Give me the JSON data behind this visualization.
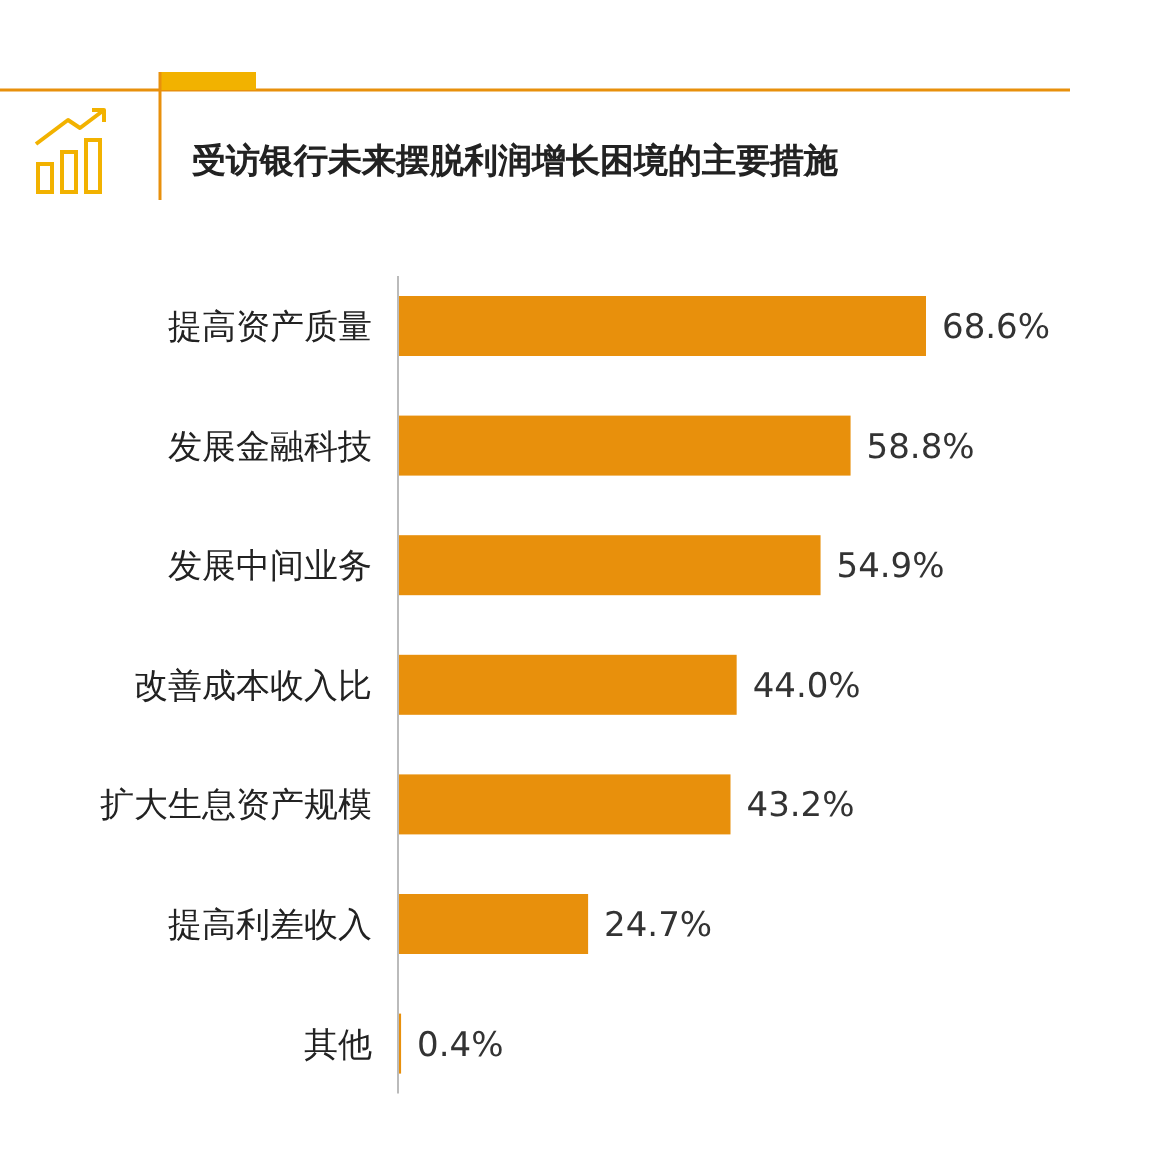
{
  "chart_data": {
    "type": "bar",
    "orientation": "horizontal",
    "title": "受访银行未来摆脱利润增长困境的主要措施",
    "categories": [
      "提高资产质量",
      "发展金融科技",
      "发展中间业务",
      "改善成本收入比",
      "扩大生息资产规模",
      "提高利差收入",
      "其他"
    ],
    "values": [
      68.6,
      58.8,
      54.9,
      44.0,
      43.2,
      24.7,
      0.4
    ],
    "color": "#e8900c",
    "value_labels": [
      "68.6%",
      "58.8%",
      "54.9%",
      "44.0%",
      "43.2%",
      "24.7%",
      "0.4%"
    ]
  }
}
